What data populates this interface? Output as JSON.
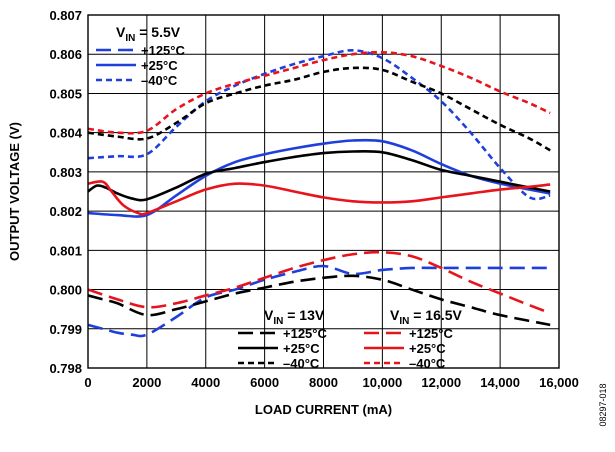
{
  "figure_id": "08297-018",
  "chart_data": {
    "type": "line",
    "xlabel": "LOAD CURRENT (mA)",
    "ylabel": "OUTPUT VOLTAGE (V)",
    "xlim": [
      0,
      16000
    ],
    "ylim": [
      0.798,
      0.807
    ],
    "x_ticks": [
      0,
      2000,
      4000,
      6000,
      8000,
      10000,
      12000,
      14000,
      16000
    ],
    "x_tick_labels": [
      "0",
      "2000",
      "4000",
      "6000",
      "8000",
      "10,000",
      "12,000",
      "14,000",
      "16,000"
    ],
    "y_ticks": [
      0.798,
      0.799,
      0.8,
      0.801,
      0.802,
      0.803,
      0.804,
      0.805,
      0.806,
      0.807
    ],
    "y_tick_labels": [
      "0.798",
      "0.799",
      "0.800",
      "0.801",
      "0.802",
      "0.803",
      "0.804",
      "0.805",
      "0.806",
      "0.807"
    ],
    "grid": true,
    "legends": [
      {
        "title_main": "V",
        "title_sub": "IN",
        "title_rest": " = 5.5V",
        "placement": "top-left",
        "entries": [
          {
            "label": "+125°C",
            "color": "#1f3fdc",
            "style": "long-dash"
          },
          {
            "label": "+25°C",
            "color": "#1f3fdc",
            "style": "solid"
          },
          {
            "label": "–40°C",
            "color": "#1f3fdc",
            "style": "short-dash"
          }
        ]
      },
      {
        "title_main": "V",
        "title_sub": "IN",
        "title_rest": " = 13V",
        "placement": "bottom-middle",
        "entries": [
          {
            "label": "+125°C",
            "color": "#000000",
            "style": "long-dash"
          },
          {
            "label": "+25°C",
            "color": "#000000",
            "style": "solid"
          },
          {
            "label": "–40°C",
            "color": "#000000",
            "style": "short-dash"
          }
        ]
      },
      {
        "title_main": "V",
        "title_sub": "IN",
        "title_rest": " = 16.5V",
        "placement": "bottom-right",
        "entries": [
          {
            "label": "+125°C",
            "color": "#e8141c",
            "style": "long-dash"
          },
          {
            "label": "+25°C",
            "color": "#e8141c",
            "style": "solid"
          },
          {
            "label": "–40°C",
            "color": "#e8141c",
            "style": "short-dash"
          }
        ]
      }
    ],
    "series": [
      {
        "vin": "5.5V",
        "temp": "+125°C",
        "color": "#1f3fdc",
        "style": "long-dash",
        "points": [
          [
            0,
            0.7991
          ],
          [
            500,
            0.799
          ],
          [
            1000,
            0.7989
          ],
          [
            1500,
            0.79885
          ],
          [
            2000,
            0.79885
          ],
          [
            3000,
            0.7993
          ],
          [
            4000,
            0.7998
          ],
          [
            5000,
            0.8
          ],
          [
            6000,
            0.80025
          ],
          [
            7000,
            0.80045
          ],
          [
            8000,
            0.8006
          ],
          [
            9000,
            0.8004
          ],
          [
            10000,
            0.8005
          ],
          [
            11000,
            0.80055
          ],
          [
            12000,
            0.80055
          ],
          [
            14000,
            0.80055
          ],
          [
            15700,
            0.80055
          ]
        ]
      },
      {
        "vin": "5.5V",
        "temp": "+25°C",
        "color": "#1f3fdc",
        "style": "solid",
        "points": [
          [
            0,
            0.80195
          ],
          [
            1000,
            0.8019
          ],
          [
            2000,
            0.8019
          ],
          [
            3000,
            0.8024
          ],
          [
            4000,
            0.8029
          ],
          [
            5000,
            0.80325
          ],
          [
            6000,
            0.80345
          ],
          [
            7000,
            0.8036
          ],
          [
            8000,
            0.80372
          ],
          [
            9000,
            0.8038
          ],
          [
            10000,
            0.80378
          ],
          [
            11000,
            0.80355
          ],
          [
            12000,
            0.8032
          ],
          [
            13000,
            0.8029
          ],
          [
            14000,
            0.8027
          ],
          [
            15000,
            0.80255
          ],
          [
            15700,
            0.80245
          ]
        ]
      },
      {
        "vin": "5.5V",
        "temp": "–40°C",
        "color": "#1f3fdc",
        "style": "short-dash",
        "points": [
          [
            0,
            0.80335
          ],
          [
            1000,
            0.8034
          ],
          [
            2000,
            0.80345
          ],
          [
            3000,
            0.80415
          ],
          [
            4000,
            0.8048
          ],
          [
            5000,
            0.8052
          ],
          [
            6000,
            0.8055
          ],
          [
            7000,
            0.80575
          ],
          [
            8000,
            0.80595
          ],
          [
            9000,
            0.8061
          ],
          [
            10000,
            0.8059
          ],
          [
            11000,
            0.8054
          ],
          [
            12000,
            0.8048
          ],
          [
            13000,
            0.804
          ],
          [
            14000,
            0.8031
          ],
          [
            15000,
            0.80235
          ],
          [
            15700,
            0.8024
          ]
        ]
      },
      {
        "vin": "13V",
        "temp": "+125°C",
        "color": "#000000",
        "style": "long-dash",
        "points": [
          [
            0,
            0.79985
          ],
          [
            500,
            0.79975
          ],
          [
            1000,
            0.79965
          ],
          [
            2000,
            0.79935
          ],
          [
            3000,
            0.7995
          ],
          [
            4000,
            0.7997
          ],
          [
            5000,
            0.7999
          ],
          [
            6000,
            0.80005
          ],
          [
            7000,
            0.8002
          ],
          [
            8000,
            0.8003
          ],
          [
            9000,
            0.80035
          ],
          [
            10000,
            0.80025
          ],
          [
            11000,
            0.8
          ],
          [
            12000,
            0.79975
          ],
          [
            13000,
            0.79955
          ],
          [
            14000,
            0.79935
          ],
          [
            15700,
            0.7991
          ]
        ]
      },
      {
        "vin": "13V",
        "temp": "+25°C",
        "color": "#000000",
        "style": "solid",
        "points": [
          [
            0,
            0.8025
          ],
          [
            300,
            0.80265
          ],
          [
            600,
            0.8026
          ],
          [
            1000,
            0.80245
          ],
          [
            1500,
            0.80232
          ],
          [
            2000,
            0.8023
          ],
          [
            3000,
            0.8026
          ],
          [
            4000,
            0.80295
          ],
          [
            5000,
            0.8031
          ],
          [
            6000,
            0.80325
          ],
          [
            7000,
            0.80338
          ],
          [
            8000,
            0.80348
          ],
          [
            9000,
            0.80352
          ],
          [
            10000,
            0.8035
          ],
          [
            11000,
            0.8033
          ],
          [
            12000,
            0.80305
          ],
          [
            13000,
            0.8029
          ],
          [
            14000,
            0.80275
          ],
          [
            15000,
            0.8026
          ],
          [
            15700,
            0.8025
          ]
        ]
      },
      {
        "vin": "13V",
        "temp": "–40°C",
        "color": "#000000",
        "style": "short-dash",
        "points": [
          [
            0,
            0.804
          ],
          [
            1000,
            0.8039
          ],
          [
            2000,
            0.80385
          ],
          [
            3000,
            0.80425
          ],
          [
            4000,
            0.80475
          ],
          [
            5000,
            0.805
          ],
          [
            6000,
            0.8052
          ],
          [
            7000,
            0.80535
          ],
          [
            8000,
            0.80555
          ],
          [
            9000,
            0.80565
          ],
          [
            10000,
            0.8056
          ],
          [
            11000,
            0.8053
          ],
          [
            12000,
            0.805
          ],
          [
            13000,
            0.8046
          ],
          [
            14000,
            0.8042
          ],
          [
            15000,
            0.80385
          ],
          [
            15700,
            0.80355
          ]
        ]
      },
      {
        "vin": "16.5V",
        "temp": "+125°C",
        "color": "#e8141c",
        "style": "long-dash",
        "points": [
          [
            0,
            0.8
          ],
          [
            1000,
            0.79975
          ],
          [
            2000,
            0.79955
          ],
          [
            3000,
            0.79965
          ],
          [
            4000,
            0.79985
          ],
          [
            5000,
            0.80005
          ],
          [
            6000,
            0.8003
          ],
          [
            7000,
            0.80055
          ],
          [
            8000,
            0.80075
          ],
          [
            9000,
            0.8009
          ],
          [
            10000,
            0.80095
          ],
          [
            11000,
            0.80085
          ],
          [
            12000,
            0.80055
          ],
          [
            13000,
            0.8002
          ],
          [
            14000,
            0.7999
          ],
          [
            15000,
            0.7996
          ],
          [
            15700,
            0.7994
          ]
        ]
      },
      {
        "vin": "16.5V",
        "temp": "+25°C",
        "color": "#e8141c",
        "style": "solid",
        "points": [
          [
            0,
            0.8027
          ],
          [
            500,
            0.80275
          ],
          [
            800,
            0.8025
          ],
          [
            1200,
            0.80215
          ],
          [
            1700,
            0.80195
          ],
          [
            2000,
            0.80195
          ],
          [
            3000,
            0.80225
          ],
          [
            4000,
            0.80255
          ],
          [
            5000,
            0.8027
          ],
          [
            6000,
            0.80265
          ],
          [
            7000,
            0.8025
          ],
          [
            8000,
            0.80235
          ],
          [
            9000,
            0.80225
          ],
          [
            10000,
            0.80222
          ],
          [
            11000,
            0.80225
          ],
          [
            12000,
            0.80235
          ],
          [
            13000,
            0.80245
          ],
          [
            14000,
            0.80255
          ],
          [
            15000,
            0.80262
          ],
          [
            15700,
            0.80268
          ]
        ]
      },
      {
        "vin": "16.5V",
        "temp": "–40°C",
        "color": "#e8141c",
        "style": "short-dash",
        "points": [
          [
            0,
            0.8041
          ],
          [
            1000,
            0.804
          ],
          [
            2000,
            0.80405
          ],
          [
            3000,
            0.8046
          ],
          [
            4000,
            0.805
          ],
          [
            5000,
            0.80525
          ],
          [
            6000,
            0.80545
          ],
          [
            7000,
            0.80565
          ],
          [
            8000,
            0.80585
          ],
          [
            9000,
            0.806
          ],
          [
            10000,
            0.80605
          ],
          [
            11000,
            0.80595
          ],
          [
            12000,
            0.8057
          ],
          [
            13000,
            0.8054
          ],
          [
            14000,
            0.80505
          ],
          [
            15000,
            0.80475
          ],
          [
            15700,
            0.8045
          ]
        ]
      }
    ]
  }
}
